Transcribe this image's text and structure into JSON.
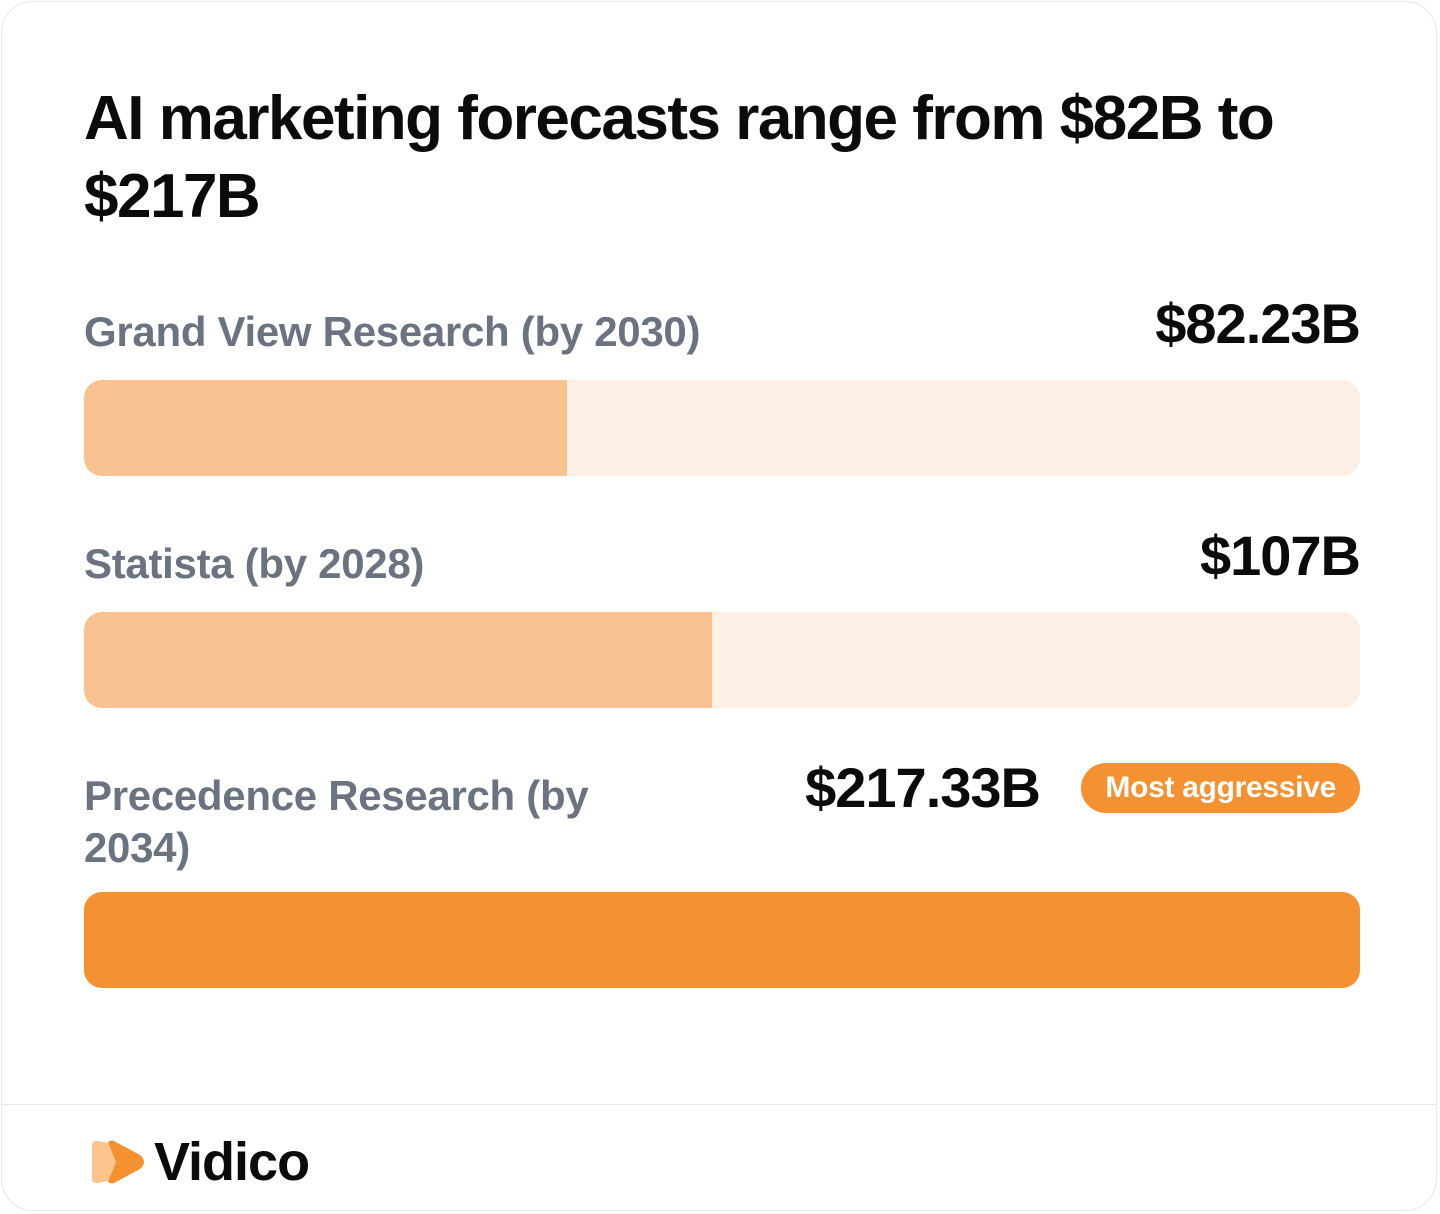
{
  "chart_data": {
    "type": "bar",
    "orientation": "horizontal",
    "title": "AI marketing forecasts range from $82B to $217B",
    "categories": [
      "Grand View Research (by 2030)",
      "Statista (by 2028)",
      "Precedence Research (by 2034)"
    ],
    "values": [
      82.23,
      107,
      217.33
    ],
    "value_labels": [
      "$82.23B",
      "$107B",
      "$217.33B"
    ],
    "unit": "$B",
    "xlim": [
      0,
      217.33
    ],
    "annotations": [
      {
        "category": "Precedence Research (by 2034)",
        "text": "Most aggressive"
      }
    ]
  },
  "colors": {
    "bar_fill": "#f8c291",
    "bar_highlight": "#f49131",
    "bar_track": "#fdefe3",
    "label_gray": "#6b7280",
    "text_dark": "#0b0b0b"
  },
  "brand": {
    "name": "Vidico",
    "icon": "play-chevron-logo-icon"
  }
}
